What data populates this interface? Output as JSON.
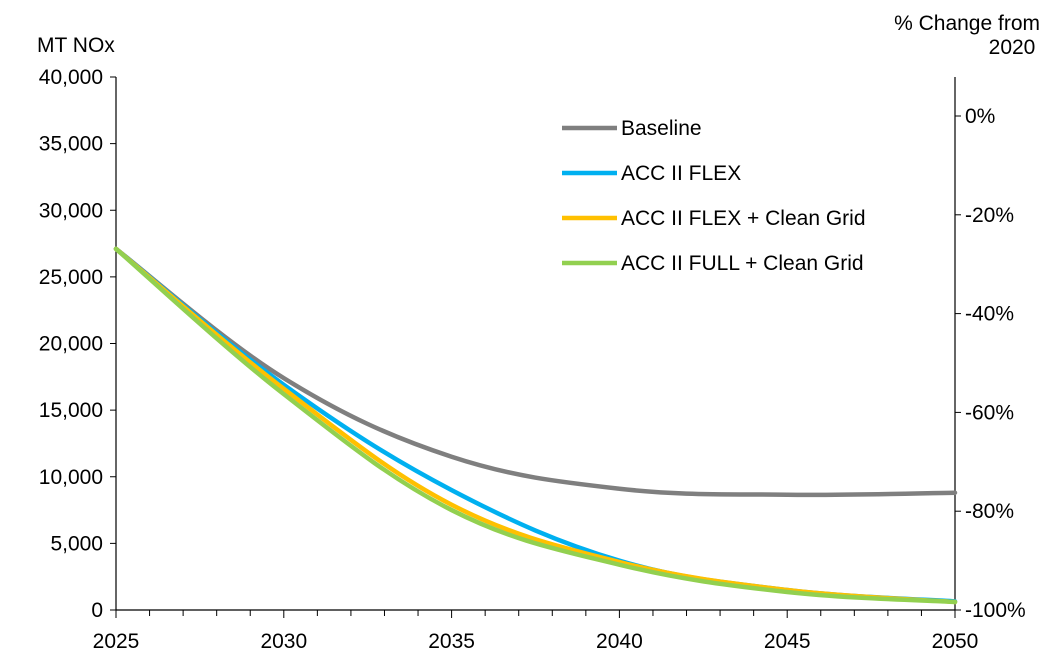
{
  "chart_data": {
    "type": "line",
    "ylabel_left": "MT NOx",
    "ylabel_right_line1": "% Change from",
    "ylabel_right_line2": "2020",
    "x_ticks": [
      "2025",
      "2030",
      "2035",
      "2040",
      "2045",
      "2050"
    ],
    "xlim": [
      2025,
      2050
    ],
    "ylim": [
      0,
      40000
    ],
    "y_ticks": [
      "0",
      "5,000",
      "10,000",
      "15,000",
      "20,000",
      "25,000",
      "30,000",
      "35,000",
      "40,000"
    ],
    "y2_ticks": [
      "-100%",
      "-80%",
      "-60%",
      "-40%",
      "-20%",
      "0%"
    ],
    "y2_range": [
      -100,
      0
    ],
    "legend_position": "upper-right",
    "grid": false,
    "series": [
      {
        "name": "Baseline",
        "color": "#7f7f7f",
        "x": [
          2025,
          2030,
          2035,
          2040,
          2045,
          2050
        ],
        "y": [
          27100,
          17400,
          11500,
          9100,
          8650,
          8800
        ]
      },
      {
        "name": "ACC II FLEX",
        "color": "#00b0f0",
        "x": [
          2025,
          2030,
          2035,
          2040,
          2045,
          2050
        ],
        "y": [
          27100,
          16900,
          9000,
          3700,
          1500,
          650
        ]
      },
      {
        "name": "ACC II FLEX + Clean Grid",
        "color": "#ffc000",
        "x": [
          2025,
          2030,
          2035,
          2040,
          2045,
          2050
        ],
        "y": [
          27100,
          16600,
          7900,
          3600,
          1500,
          600
        ]
      },
      {
        "name": "ACC II FULL + Clean Grid",
        "color": "#92d050",
        "x": [
          2025,
          2030,
          2035,
          2040,
          2045,
          2050
        ],
        "y": [
          27100,
          16200,
          7500,
          3400,
          1350,
          600
        ]
      }
    ]
  }
}
